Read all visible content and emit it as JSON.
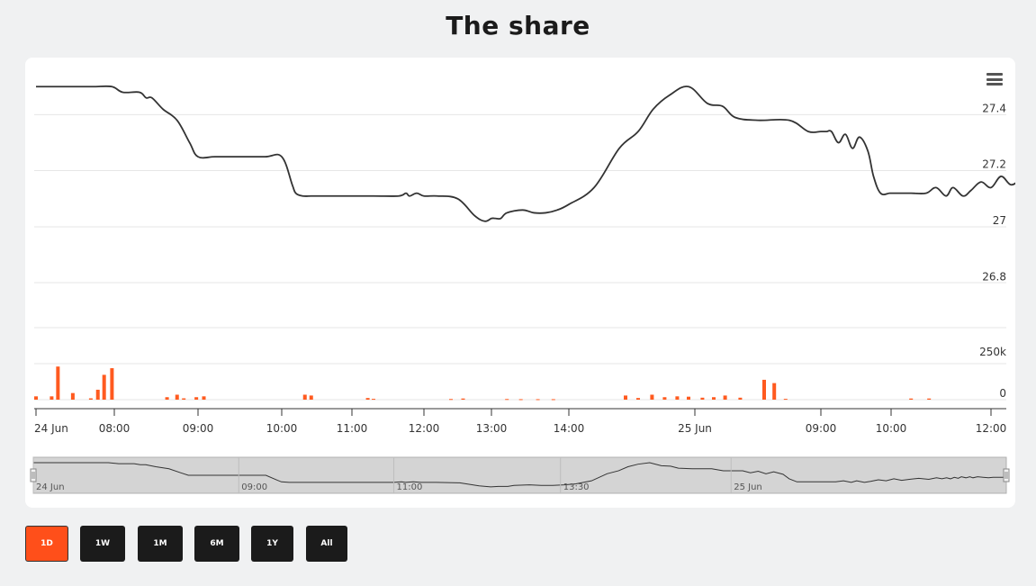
{
  "page": {
    "title": "The share"
  },
  "colors": {
    "line": "#333333",
    "volume": "#ff5a1f",
    "grid": "#e6e6e6",
    "active": "#ff4f1a",
    "button": "#1b1b1b"
  },
  "menu_icon": "hamburger-menu-icon",
  "range_buttons": [
    {
      "label": "1D",
      "active": true
    },
    {
      "label": "1W",
      "active": false
    },
    {
      "label": "1M",
      "active": false
    },
    {
      "label": "6M",
      "active": false
    },
    {
      "label": "1Y",
      "active": false
    },
    {
      "label": "All",
      "active": false
    }
  ],
  "chart_data": {
    "type": "line",
    "title": "The share",
    "price_axis": {
      "min": 26.72,
      "max": 27.58,
      "ticks": [
        26.8,
        27,
        27.2,
        27.4
      ],
      "tick_labels": [
        "26.8",
        "27",
        "27.2",
        "27.4"
      ]
    },
    "volume_axis": {
      "min": 0,
      "max": 380000,
      "ticks": [
        0,
        250000
      ],
      "tick_labels": [
        "0",
        "250k"
      ]
    },
    "x_axis": {
      "ticks": [
        {
          "label": "24 Jun",
          "v": 0
        },
        {
          "label": "08:00",
          "v": 1
        },
        {
          "label": "09:00",
          "v": 2
        },
        {
          "label": "10:00",
          "v": 3
        },
        {
          "label": "11:00",
          "v": 4
        },
        {
          "label": "12:00",
          "v": 5
        },
        {
          "label": "13:00",
          "v": 6
        },
        {
          "label": "14:00",
          "v": 7
        },
        {
          "label": "25 Jun",
          "v": 8
        },
        {
          "label": "09:00",
          "v": 9
        },
        {
          "label": "10:00",
          "v": 10
        },
        {
          "label": "12:00",
          "v": 11
        }
      ]
    },
    "series": [
      {
        "name": "",
        "x": [
          0.0,
          0.2,
          0.6,
          0.75,
          0.97,
          1.1,
          1.3,
          1.38,
          1.45,
          1.58,
          1.75,
          1.9,
          2.0,
          2.2,
          2.45,
          2.8,
          3.0,
          3.15,
          3.2,
          3.3,
          3.42,
          3.55,
          3.8,
          4.3,
          4.65,
          4.75,
          4.8,
          4.9,
          5.0,
          5.2,
          5.5,
          5.75,
          5.9,
          6.0,
          6.05,
          6.12,
          6.2,
          6.4,
          6.55,
          6.7,
          6.85,
          7.0,
          7.2,
          7.4,
          7.55,
          7.67,
          7.8,
          7.95,
          8.1,
          8.22,
          8.32,
          8.5,
          8.75,
          8.9,
          9.0,
          9.08,
          9.15,
          9.25,
          9.35,
          9.45,
          9.55,
          9.67,
          9.75,
          9.85,
          9.98,
          10.05,
          10.2,
          10.35,
          10.45,
          10.55,
          10.62,
          10.72,
          10.8,
          10.9,
          11.0,
          11.1,
          11.2,
          11.3,
          11.42,
          11.55,
          11.65,
          11.72,
          11.78,
          11.83,
          11.88,
          11.93,
          11.97,
          12.03,
          12.08,
          12.12,
          12.18,
          12.25,
          12.32,
          12.38,
          12.45,
          12.52
        ],
        "y": [
          27.5,
          27.5,
          27.5,
          27.5,
          27.5,
          27.48,
          27.48,
          27.46,
          27.46,
          27.42,
          27.38,
          27.3,
          27.25,
          27.25,
          27.25,
          27.25,
          27.25,
          27.15,
          27.12,
          27.11,
          27.11,
          27.11,
          27.11,
          27.11,
          27.11,
          27.12,
          27.11,
          27.12,
          27.11,
          27.11,
          27.1,
          27.04,
          27.02,
          27.03,
          27.03,
          27.03,
          27.05,
          27.06,
          27.05,
          27.05,
          27.06,
          27.08,
          27.14,
          27.28,
          27.34,
          27.42,
          27.47,
          27.5,
          27.44,
          27.43,
          27.39,
          27.38,
          27.38,
          27.34,
          27.34,
          27.34,
          27.34,
          27.3,
          27.33,
          27.28,
          27.32,
          27.27,
          27.18,
          27.12,
          27.12,
          27.12,
          27.12,
          27.12,
          27.14,
          27.11,
          27.14,
          27.11,
          27.13,
          27.16,
          27.14,
          27.18,
          27.15,
          27.17,
          27.19,
          27.17,
          27.2,
          27.18,
          27.2,
          27.18,
          27.21,
          27.19,
          27.22,
          27.2,
          27.22,
          27.2,
          27.22,
          27.21,
          27.2,
          27.21,
          27.21,
          27.21
        ]
      }
    ],
    "volume": [
      {
        "x": 0.0,
        "v": 20000
      },
      {
        "x": 0.2,
        "v": 20000
      },
      {
        "x": 0.28,
        "v": 200000
      },
      {
        "x": 0.47,
        "v": 40000
      },
      {
        "x": 0.7,
        "v": 8000
      },
      {
        "x": 0.79,
        "v": 60000
      },
      {
        "x": 0.87,
        "v": 150000
      },
      {
        "x": 0.97,
        "v": 190000
      },
      {
        "x": 1.63,
        "v": 15000
      },
      {
        "x": 1.75,
        "v": 30000
      },
      {
        "x": 1.83,
        "v": 8000
      },
      {
        "x": 1.98,
        "v": 15000
      },
      {
        "x": 2.07,
        "v": 20000
      },
      {
        "x": 3.33,
        "v": 30000
      },
      {
        "x": 3.42,
        "v": 25000
      },
      {
        "x": 4.22,
        "v": 10000
      },
      {
        "x": 4.3,
        "v": 5000
      },
      {
        "x": 5.4,
        "v": 4000
      },
      {
        "x": 5.58,
        "v": 7000
      },
      {
        "x": 6.2,
        "v": 4000
      },
      {
        "x": 6.38,
        "v": 3000
      },
      {
        "x": 6.6,
        "v": 3000
      },
      {
        "x": 6.8,
        "v": 3000
      },
      {
        "x": 7.45,
        "v": 25000
      },
      {
        "x": 7.55,
        "v": 10000
      },
      {
        "x": 7.66,
        "v": 30000
      },
      {
        "x": 7.76,
        "v": 15000
      },
      {
        "x": 7.86,
        "v": 20000
      },
      {
        "x": 7.95,
        "v": 18000
      },
      {
        "x": 8.06,
        "v": 12000
      },
      {
        "x": 8.15,
        "v": 15000
      },
      {
        "x": 8.24,
        "v": 25000
      },
      {
        "x": 8.36,
        "v": 12000
      },
      {
        "x": 8.55,
        "v": 120000
      },
      {
        "x": 8.63,
        "v": 100000
      },
      {
        "x": 8.72,
        "v": 5000
      },
      {
        "x": 10.2,
        "v": 7000
      },
      {
        "x": 10.38,
        "v": 7000
      },
      {
        "x": 11.93,
        "v": 30000
      }
    ],
    "navigator": {
      "ticks": [
        {
          "label": "24 Jun",
          "v": 0
        },
        {
          "label": "09:00",
          "v": 2.65
        },
        {
          "label": "11:00",
          "v": 4.65
        },
        {
          "label": "13:30",
          "v": 6.8
        },
        {
          "label": "25 Jun",
          "v": 9.0
        }
      ]
    },
    "grid": true,
    "legend": "none"
  }
}
